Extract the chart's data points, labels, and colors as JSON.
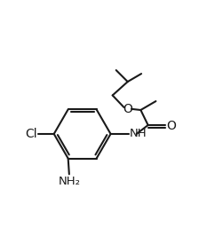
{
  "bg_color": "#ffffff",
  "line_color": "#1a1a1a",
  "line_width": 1.5,
  "font_size": 9.5,
  "figsize": [
    2.42,
    2.57
  ],
  "dpi": 100,
  "xlim": [
    0,
    10
  ],
  "ylim": [
    0,
    10.5
  ]
}
